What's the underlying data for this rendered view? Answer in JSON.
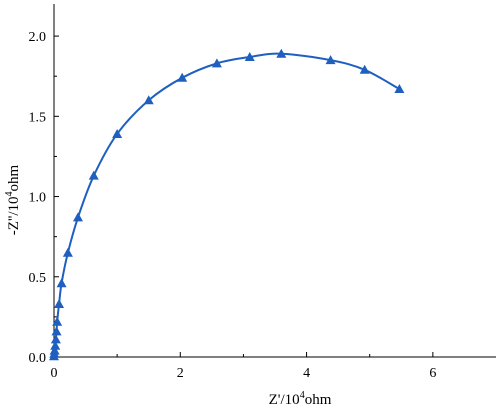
{
  "chart_data": {
    "type": "scatter",
    "title": "",
    "xlabel": {
      "prefix": "Z'/10",
      "sup": "4",
      "suffix": "ohm"
    },
    "ylabel": {
      "prefix": "-Z''/10",
      "sup": "4",
      "suffix": "ohm"
    },
    "xlim": [
      0,
      7
    ],
    "ylim": [
      0,
      2.2
    ],
    "xticks": [
      "0",
      "2",
      "4",
      "6"
    ],
    "yticks": [
      "0.0",
      "0.5",
      "1.0",
      "1.5",
      "2.0"
    ],
    "grid": false,
    "legend": "none",
    "series": [
      {
        "color": "#1f5fbf",
        "marker": "triangle",
        "line": "smooth",
        "points": [
          {
            "x": 0.0,
            "y": 0.005
          },
          {
            "x": 0.005,
            "y": 0.02
          },
          {
            "x": 0.01,
            "y": 0.04
          },
          {
            "x": 0.02,
            "y": 0.07
          },
          {
            "x": 0.03,
            "y": 0.11
          },
          {
            "x": 0.04,
            "y": 0.16
          },
          {
            "x": 0.05,
            "y": 0.22
          },
          {
            "x": 0.08,
            "y": 0.33
          },
          {
            "x": 0.12,
            "y": 0.46
          },
          {
            "x": 0.22,
            "y": 0.65
          },
          {
            "x": 0.38,
            "y": 0.87
          },
          {
            "x": 0.63,
            "y": 1.13
          },
          {
            "x": 1.0,
            "y": 1.39
          },
          {
            "x": 1.5,
            "y": 1.6
          },
          {
            "x": 2.03,
            "y": 1.74
          },
          {
            "x": 2.58,
            "y": 1.83
          },
          {
            "x": 3.1,
            "y": 1.87
          },
          {
            "x": 3.6,
            "y": 1.89
          },
          {
            "x": 4.38,
            "y": 1.85
          },
          {
            "x": 4.92,
            "y": 1.79
          },
          {
            "x": 5.47,
            "y": 1.67
          }
        ]
      }
    ]
  }
}
